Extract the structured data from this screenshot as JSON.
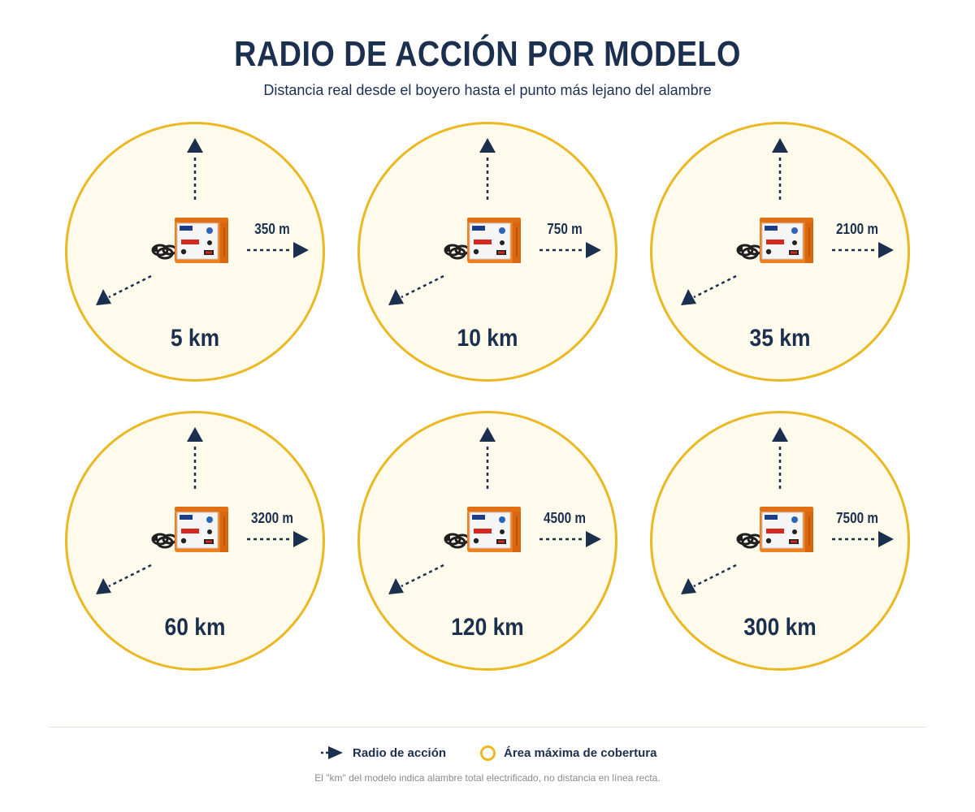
{
  "header": {
    "title": "RADIO DE ACCIÓN POR MODELO",
    "subtitle": "Distancia real desde el boyero hasta el punto más lejano del alambre"
  },
  "models": [
    {
      "model": "5 km",
      "radius": "350 m"
    },
    {
      "model": "10 km",
      "radius": "750 m"
    },
    {
      "model": "35 km",
      "radius": "2100 m"
    },
    {
      "model": "60 km",
      "radius": "3200 m"
    },
    {
      "model": "120 km",
      "radius": "4500 m"
    },
    {
      "model": "300 km",
      "radius": "7500 m"
    }
  ],
  "legend": {
    "radius_label": "Radio de acción",
    "coverage_label": "Área máxima de cobertura"
  },
  "footnote": "El \"km\" del modelo indica alambre total electrificado, no distancia en línea recta.",
  "colors": {
    "navy": "#1b2f4e",
    "gold": "#ecb821",
    "cream": "#fefaec",
    "device_orange": "#f07f1e"
  },
  "icons": {
    "arrow": "arrow-icon",
    "device": "energizer-device-icon",
    "ring": "coverage-ring-icon"
  }
}
